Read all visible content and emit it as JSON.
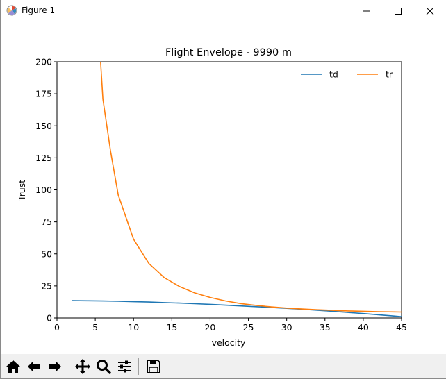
{
  "window": {
    "title": "Figure 1",
    "icons": {
      "app": "matplotlib-icon",
      "minimize": "minimize-icon",
      "maximize": "maximize-icon",
      "close": "close-icon"
    }
  },
  "toolbar": {
    "buttons": [
      {
        "name": "home-button",
        "icon": "home-icon"
      },
      {
        "name": "back-button",
        "icon": "arrow-left-icon"
      },
      {
        "name": "forward-button",
        "icon": "arrow-right-icon"
      },
      {
        "name": "pan-button",
        "icon": "move-icon"
      },
      {
        "name": "zoom-button",
        "icon": "magnifier-icon"
      },
      {
        "name": "configure-subplots-button",
        "icon": "sliders-icon"
      },
      {
        "name": "save-button",
        "icon": "floppy-disk-icon"
      }
    ]
  },
  "chart_data": {
    "type": "line",
    "title": "Flight Envelope - 9990 m",
    "xlabel": "velocity",
    "ylabel": "Trust",
    "xlim": [
      0,
      45
    ],
    "ylim": [
      0,
      200
    ],
    "xticks": [
      0,
      5,
      10,
      15,
      20,
      25,
      30,
      35,
      40,
      45
    ],
    "yticks": [
      0,
      25,
      50,
      75,
      100,
      125,
      150,
      175,
      200
    ],
    "grid": false,
    "legend": "top-right",
    "series": [
      {
        "name": "td",
        "color": "#1f77b4",
        "x": [
          2,
          4,
          6,
          8,
          10,
          12,
          14,
          16,
          18,
          20,
          22,
          24,
          26,
          28,
          30,
          32,
          34,
          36,
          38,
          40,
          42,
          44,
          45
        ],
        "y": [
          13.5,
          13.4,
          13.2,
          13.0,
          12.7,
          12.4,
          12.0,
          11.6,
          11.1,
          10.6,
          10.0,
          9.4,
          8.8,
          8.2,
          7.5,
          6.8,
          6.0,
          5.2,
          4.3,
          3.4,
          2.5,
          1.5,
          1.0
        ]
      },
      {
        "name": "tr",
        "color": "#ff7f0e",
        "x": [
          5.7,
          6,
          7,
          8,
          10,
          12,
          14,
          16,
          18,
          20,
          22,
          24,
          26,
          28,
          30,
          32,
          34,
          36,
          38,
          40,
          42,
          44,
          45
        ],
        "y": [
          200,
          171,
          130,
          96,
          61.5,
          42.5,
          31.5,
          24.5,
          19.5,
          16,
          13.3,
          11.2,
          9.8,
          8.6,
          7.7,
          7.0,
          6.4,
          5.9,
          5.5,
          5.2,
          4.9,
          4.7,
          4.6
        ]
      }
    ]
  }
}
